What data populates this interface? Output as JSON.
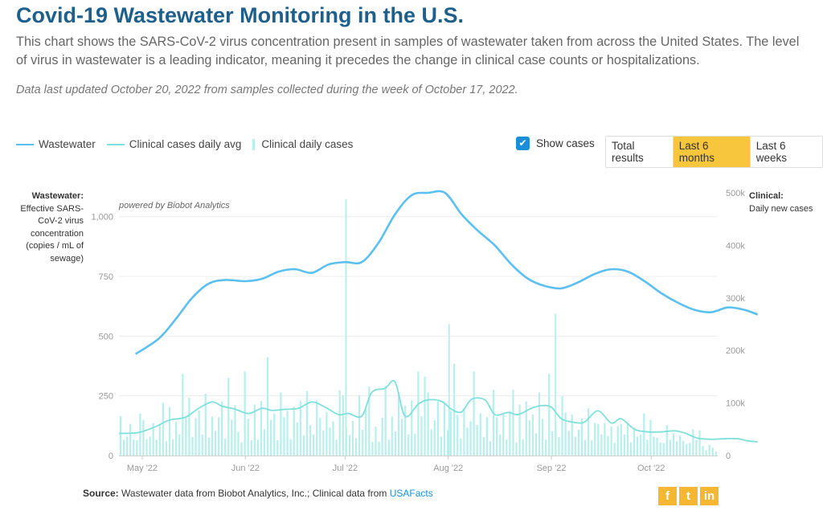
{
  "header": {
    "title": "Covid-19 Wastewater Monitoring in the U.S.",
    "subtitle": "This chart shows the SARS-CoV-2 virus concentration present in samples of wastewater taken from across the United States. The level of virus in wastewater is a leading indicator, meaning it precedes the change in clinical case counts or hospitalizations.",
    "updated": "Data last updated October 20, 2022 from samples collected during the week of October 17, 2022."
  },
  "legend": [
    {
      "label": "Wastewater",
      "color": "#5bc0f0",
      "kind": "line"
    },
    {
      "label": "Clinical cases daily avg",
      "color": "#7fe0db",
      "kind": "line"
    },
    {
      "label": "Clinical daily cases",
      "color": "#b8efec",
      "kind": "bar"
    }
  ],
  "controls": {
    "show_cases_label": "Show cases",
    "show_cases_checked": true,
    "ranges": [
      "Total results",
      "Last 6 months",
      "Last 6 weeks"
    ],
    "active_range": "Last 6 months"
  },
  "axes": {
    "left_title": "Wastewater:",
    "left_desc": "Effective SARS-CoV-2 virus concentration (copies / mL of sewage)",
    "right_title": "Clinical:",
    "right_desc": "Daily new cases"
  },
  "powered_by": "powered by Biobot Analytics",
  "chart_data": {
    "type": "line",
    "x_labels": [
      "May '22",
      "Jun '22",
      "Jul '22",
      "Aug '22",
      "Sep '22",
      "Oct '22"
    ],
    "x_label_days": [
      7,
      38,
      68,
      99,
      130,
      160
    ],
    "x_range_days": [
      0,
      180
    ],
    "left_axis": {
      "ticks": [
        0,
        250,
        500,
        750,
        1000
      ],
      "tick_labels": [
        "0",
        "250",
        "500",
        "750",
        "1,000"
      ],
      "range": [
        0,
        1100
      ]
    },
    "right_axis": {
      "ticks": [
        0,
        100000,
        200000,
        300000,
        400000,
        500000
      ],
      "tick_labels": [
        "0",
        "100k",
        "200k",
        "300k",
        "400k",
        "500k"
      ],
      "range": [
        0,
        500000
      ]
    },
    "grid": true,
    "series": [
      {
        "name": "Wastewater",
        "axis": "left",
        "color": "#5bc0f0",
        "points": [
          [
            5,
            425
          ],
          [
            12,
            490
          ],
          [
            17,
            570
          ],
          [
            22,
            660
          ],
          [
            27,
            720
          ],
          [
            32,
            735
          ],
          [
            38,
            730
          ],
          [
            43,
            740
          ],
          [
            48,
            770
          ],
          [
            53,
            780
          ],
          [
            58,
            765
          ],
          [
            63,
            800
          ],
          [
            68,
            810
          ],
          [
            73,
            810
          ],
          [
            78,
            890
          ],
          [
            83,
            1010
          ],
          [
            88,
            1090
          ],
          [
            93,
            1100
          ],
          [
            98,
            1100
          ],
          [
            103,
            1010
          ],
          [
            108,
            940
          ],
          [
            113,
            880
          ],
          [
            118,
            800
          ],
          [
            123,
            740
          ],
          [
            128,
            710
          ],
          [
            133,
            700
          ],
          [
            138,
            725
          ],
          [
            143,
            760
          ],
          [
            148,
            780
          ],
          [
            153,
            770
          ],
          [
            158,
            730
          ],
          [
            163,
            680
          ],
          [
            168,
            640
          ],
          [
            173,
            610
          ],
          [
            178,
            600
          ],
          [
            183,
            620
          ],
          [
            188,
            610
          ],
          [
            192,
            590
          ]
        ]
      },
      {
        "name": "Clinical cases daily avg",
        "axis": "right",
        "color": "#7fe0db",
        "points": [
          [
            0,
            42000
          ],
          [
            6,
            44000
          ],
          [
            11,
            55000
          ],
          [
            15,
            67000
          ],
          [
            20,
            73000
          ],
          [
            24,
            90000
          ],
          [
            28,
            102000
          ],
          [
            31,
            94000
          ],
          [
            35,
            88000
          ],
          [
            39,
            80000
          ],
          [
            43,
            90000
          ],
          [
            46,
            86000
          ],
          [
            50,
            88000
          ],
          [
            54,
            90000
          ],
          [
            58,
            102000
          ],
          [
            62,
            92000
          ],
          [
            66,
            78000
          ],
          [
            69,
            80000
          ],
          [
            73,
            75000
          ],
          [
            76,
            120000
          ],
          [
            80,
            128000
          ],
          [
            83,
            140000
          ],
          [
            86,
            75000
          ],
          [
            90,
            98000
          ],
          [
            93,
            106000
          ],
          [
            97,
            103000
          ],
          [
            100,
            88000
          ],
          [
            103,
            83000
          ],
          [
            106,
            107000
          ],
          [
            110,
            106000
          ],
          [
            113,
            78000
          ],
          [
            117,
            82000
          ],
          [
            120,
            78000
          ],
          [
            124,
            90000
          ],
          [
            127,
            95000
          ],
          [
            130,
            92000
          ],
          [
            133,
            70000
          ],
          [
            137,
            63000
          ],
          [
            140,
            64000
          ],
          [
            144,
            85000
          ],
          [
            148,
            62000
          ],
          [
            151,
            70000
          ],
          [
            155,
            50000
          ],
          [
            159,
            45000
          ],
          [
            163,
            45000
          ],
          [
            167,
            47000
          ],
          [
            170,
            43000
          ],
          [
            174,
            33000
          ],
          [
            178,
            31000
          ],
          [
            182,
            32000
          ],
          [
            186,
            32000
          ],
          [
            189,
            28000
          ],
          [
            192,
            26000
          ]
        ]
      },
      {
        "name": "Clinical daily cases",
        "axis": "right",
        "type": "bar",
        "color": "#b8efec",
        "values": [
          75000,
          30000,
          36000,
          60000,
          30000,
          29000,
          80000,
          68000,
          31000,
          36000,
          62000,
          30000,
          59000,
          100000,
          27000,
          92000,
          31000,
          64000,
          40000,
          155000,
          73000,
          110000,
          35000,
          71000,
          86000,
          40000,
          118000,
          34000,
          74000,
          47000,
          73000,
          103000,
          32000,
          148000,
          68000,
          96000,
          45000,
          25000,
          160000,
          70000,
          29000,
          97000,
          30000,
          104000,
          50000,
          187000,
          68000,
          80000,
          29000,
          120000,
          73000,
          85000,
          31000,
          93000,
          63000,
          104000,
          38000,
          123000,
          58000,
          40000,
          105000,
          72000,
          48000,
          83000,
          53000,
          65000,
          30000,
          124000,
          115000,
          53000,
          39000,
          66000,
          33000,
          115000,
          49000,
          89000,
          131000,
          26000,
          55000,
          26000,
          72000,
          133000,
          30000,
          74000,
          46000,
          120000,
          70000,
          95000,
          40000,
          105000,
          41000,
          160000,
          75000,
          150000,
          120000,
          50000,
          67000,
          103000,
          36000,
          102000,
          48000,
          85000,
          175000,
          77000,
          32000,
          90000,
          53000,
          65000,
          160000,
          58000,
          80000,
          35000,
          73000,
          27000,
          125000,
          73000,
          40000,
          80000,
          30000,
          85000,
          125000,
          25000,
          97000,
          31000,
          103000,
          67000,
          78000,
          42000,
          120000,
          70000,
          30000,
          155000,
          46000,
          64000,
          35000,
          113000,
          82000,
          47000,
          78000,
          36000,
          49000,
          70000,
          30000,
          90000,
          29000,
          62000,
          60000,
          40000,
          62000,
          37000,
          55000,
          24000,
          56000,
          60000,
          40000,
          60000,
          25000,
          53000,
          36000,
          40000,
          80000,
          30000,
          68000,
          36000,
          34000,
          25000,
          24000,
          58000,
          30000,
          42000,
          27000,
          38000,
          28000,
          22000,
          24000,
          50000,
          30000,
          48000,
          18000,
          10000,
          20000,
          15000,
          8000
        ],
        "spikes": [
          [
            68,
            488000
          ],
          [
            99,
            250000
          ],
          [
            131,
            270000
          ]
        ]
      }
    ]
  },
  "source": {
    "label": "Source:",
    "text": "Wastewater data from Biobot Analytics, Inc.; Clinical data from",
    "link": "USAFacts"
  },
  "social": [
    {
      "icon": "facebook-icon",
      "glyph": "f"
    },
    {
      "icon": "twitter-icon",
      "glyph": "t"
    },
    {
      "icon": "linkedin-icon",
      "glyph": "in"
    }
  ]
}
